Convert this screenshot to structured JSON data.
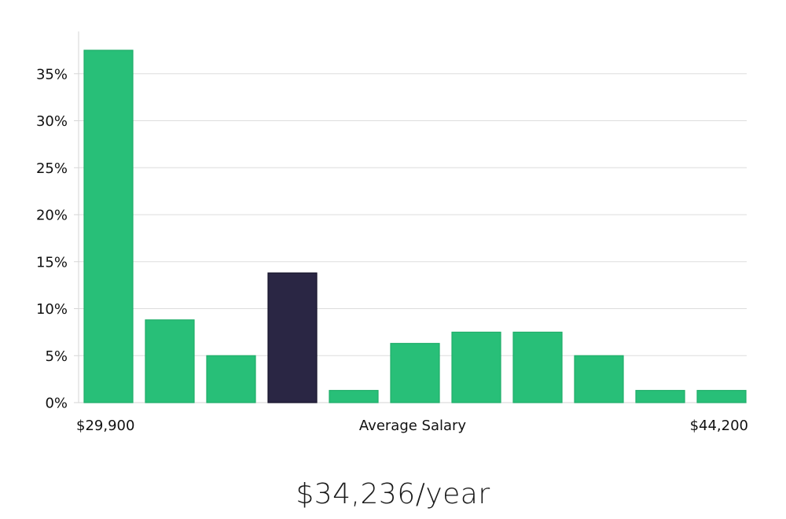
{
  "chart_data": {
    "type": "bar",
    "title": "",
    "xlabel": "Average Salary",
    "ylabel": "",
    "x_range_labels": {
      "min": "$29,900",
      "max": "$44,200"
    },
    "values": [
      37.5,
      8.8,
      5.0,
      13.8,
      1.3,
      6.3,
      7.5,
      7.5,
      5.0,
      1.3,
      1.3
    ],
    "highlight_index": 3,
    "ylim": [
      0,
      39.5
    ],
    "yticks": [
      0,
      5,
      10,
      15,
      20,
      25,
      30,
      35
    ],
    "ytick_labels": [
      "0%",
      "5%",
      "10%",
      "15%",
      "20%",
      "25%",
      "30%",
      "35%"
    ],
    "grid": true,
    "colors": {
      "bar": "#28bf78",
      "bar_stroke": "#1fae69",
      "highlight": "#2a2644",
      "grid": "#dddddd",
      "axis": "#d6d6d6"
    }
  },
  "average_salary": "$34,236/year"
}
